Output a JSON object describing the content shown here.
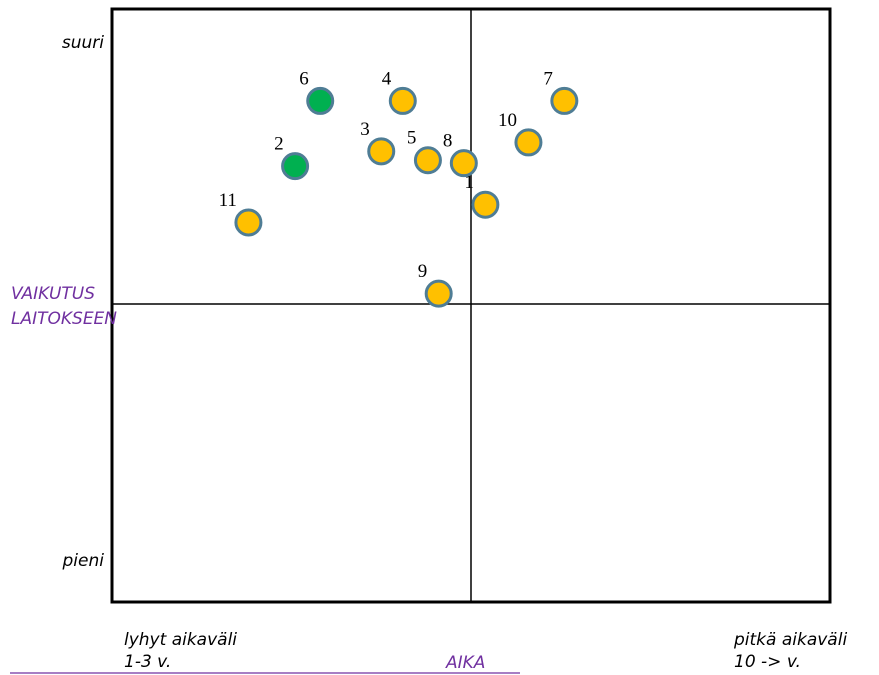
{
  "chart_data": {
    "type": "scatter",
    "xlabel": "AIKA",
    "ylabel": [
      "VAIKUTUS",
      "LAITOKSEEN"
    ],
    "x_axis_ends": {
      "left": [
        "lyhyt aikaväli",
        "1-3 v."
      ],
      "right": [
        "pitkä aikaväli",
        "10 -> v."
      ]
    },
    "y_axis_ends": {
      "top": "suuri",
      "bottom": "pieni"
    },
    "xlim": [
      0,
      100
    ],
    "ylim": [
      0,
      100
    ],
    "grid": false,
    "quadrant_dividers": {
      "x": 50,
      "y": 50
    },
    "colors": {
      "yellow": "#ffc000",
      "green": "#00b050",
      "outline": "#4f7d95",
      "title": "#7030a0"
    },
    "points": [
      {
        "label": "1",
        "x": 52.0,
        "y": 67.0,
        "color": "yellow"
      },
      {
        "label": "2",
        "x": 25.5,
        "y": 73.5,
        "color": "green"
      },
      {
        "label": "3",
        "x": 37.5,
        "y": 76.0,
        "color": "yellow"
      },
      {
        "label": "4",
        "x": 40.5,
        "y": 84.5,
        "color": "yellow"
      },
      {
        "label": "5",
        "x": 44.0,
        "y": 74.5,
        "color": "yellow"
      },
      {
        "label": "6",
        "x": 29.0,
        "y": 84.5,
        "color": "green"
      },
      {
        "label": "7",
        "x": 63.0,
        "y": 84.5,
        "color": "yellow"
      },
      {
        "label": "8",
        "x": 49.0,
        "y": 74.0,
        "color": "yellow"
      },
      {
        "label": "9",
        "x": 45.5,
        "y": 52.0,
        "color": "yellow"
      },
      {
        "label": "10",
        "x": 58.0,
        "y": 77.5,
        "color": "yellow"
      },
      {
        "label": "11",
        "x": 19.0,
        "y": 64.0,
        "color": "yellow"
      }
    ]
  }
}
